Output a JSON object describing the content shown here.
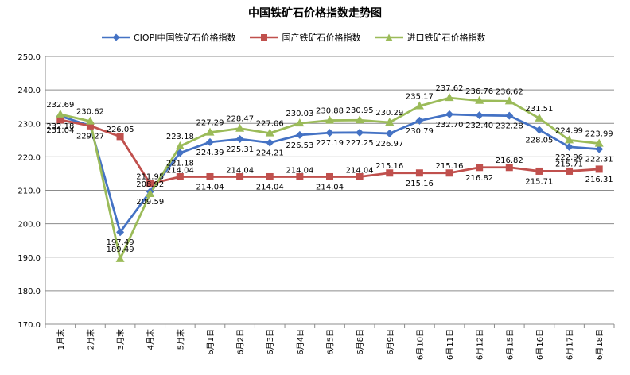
{
  "chart_data": {
    "type": "line",
    "title": "中国铁矿石价格指数走势图",
    "categories": [
      "1月末",
      "2月末",
      "3月末",
      "4月末",
      "5月末",
      "6月1日",
      "6月2日",
      "6月3日",
      "6月4日",
      "6月5日",
      "6月8日",
      "6月9日",
      "6月10日",
      "6月11日",
      "6月12日",
      "6月15日",
      "6月16日",
      "6月17日",
      "6月18日"
    ],
    "ylim": [
      170,
      250
    ],
    "yticks": [
      "170.0",
      "180.0",
      "190.0",
      "200.0",
      "210.0",
      "220.0",
      "230.0",
      "240.0",
      "250.0"
    ],
    "grid": "horizontal",
    "legend_position": "top",
    "series": [
      {
        "name": "CIOPI中国铁矿石价格指数",
        "color": "#4472C4",
        "marker": "diamond",
        "values": [
          232.18,
          229.27,
          197.49,
          209.59,
          221.18,
          224.39,
          225.31,
          224.21,
          226.53,
          227.19,
          227.25,
          226.97,
          230.79,
          232.7,
          232.4,
          232.28,
          228.05,
          222.96,
          222.31
        ],
        "labels": [
          "232.18",
          "229.27",
          "197.49",
          "209.59",
          "221.18",
          "224.39",
          "225.31",
          "224.21",
          "226.53",
          "227.19",
          "227.25",
          "226.97",
          "230.79",
          "232.70",
          "232.40",
          "232.28",
          "228.05",
          "222.96",
          "222.31"
        ]
      },
      {
        "name": "国产铁矿石价格指数",
        "color": "#C0504D",
        "marker": "square",
        "values": [
          231.04,
          229.27,
          226.05,
          211.95,
          214.04,
          214.04,
          214.04,
          214.04,
          214.04,
          214.04,
          214.04,
          215.16,
          215.16,
          215.16,
          216.82,
          216.82,
          215.71,
          215.71,
          216.31
        ],
        "labels": [
          "231.04",
          "",
          "226.05",
          "211.95",
          "214.04",
          "214.04",
          "214.04",
          "214.04",
          "214.04",
          "214.04",
          "214.04",
          "215.16",
          "215.16",
          "215.16",
          "216.82",
          "216.82",
          "215.71",
          "215.71",
          "216.31"
        ]
      },
      {
        "name": "进口铁矿石价格指数",
        "color": "#9BBB59",
        "marker": "triangle",
        "values": [
          232.69,
          230.62,
          189.49,
          208.92,
          223.18,
          227.29,
          228.47,
          227.06,
          230.03,
          230.88,
          230.95,
          230.29,
          235.17,
          237.62,
          236.76,
          236.62,
          231.51,
          224.99,
          223.99
        ],
        "labels": [
          "232.69",
          "230.62",
          "189.49",
          "208.92",
          "223.18",
          "227.29",
          "228.47",
          "227.06",
          "230.03",
          "230.88",
          "230.95",
          "230.29",
          "235.17",
          "237.62",
          "236.76",
          "236.62",
          "231.51",
          "224.99",
          "223.99"
        ]
      }
    ]
  }
}
